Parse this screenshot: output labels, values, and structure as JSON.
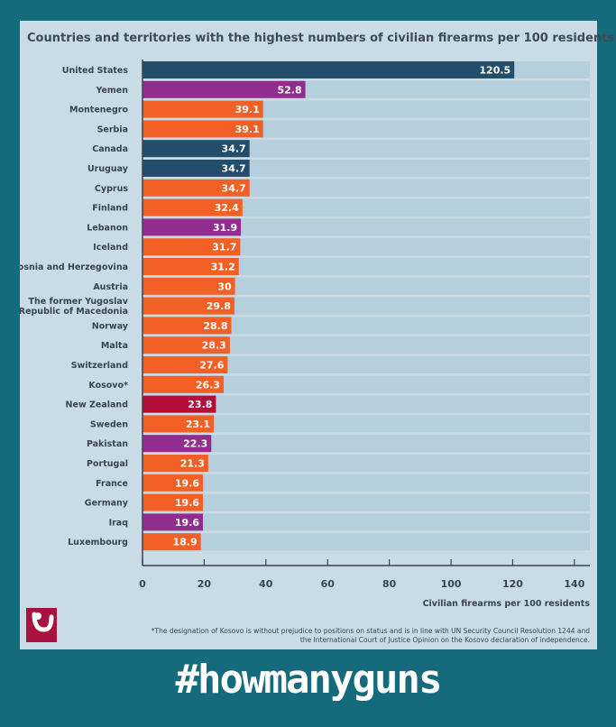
{
  "page": {
    "background_color": "#156a7b",
    "hashtag": "#howmanyguns",
    "footnote_line1": "*The designation of Kosovo is without prejudice to positions on status and is in line with UN Security Council Resolution 1244 and",
    "footnote_line2": "the International Court of Justice Opinion on the Kosovo declaration of independence."
  },
  "colors": {
    "panel": "#c9dbe4",
    "track": "#b6cfdc",
    "americas": "#224d6b",
    "middle_east_asia": "#922d8f",
    "europe": "#f26026",
    "oceania": "#b50d3a",
    "logo": "#a8123e"
  },
  "chart_data": {
    "type": "bar",
    "orientation": "horizontal",
    "title": "Countries and territories with the highest numbers of civilian firearms per 100 residents",
    "xlabel": "Civilian firearms per 100 residents",
    "ylabel": "",
    "xlim": [
      0,
      145
    ],
    "xticks": [
      0,
      20,
      40,
      60,
      80,
      100,
      120,
      140
    ],
    "bars": [
      {
        "label": "United States",
        "value": 120.5,
        "display": "120.5",
        "group": "americas"
      },
      {
        "label": "Yemen",
        "value": 52.8,
        "display": "52.8",
        "group": "middle_east_asia"
      },
      {
        "label": "Montenegro",
        "value": 39.1,
        "display": "39.1",
        "group": "europe"
      },
      {
        "label": "Serbia",
        "value": 39.1,
        "display": "39.1",
        "group": "europe"
      },
      {
        "label": "Canada",
        "value": 34.7,
        "display": "34.7",
        "group": "americas"
      },
      {
        "label": "Uruguay",
        "value": 34.7,
        "display": "34.7",
        "group": "americas"
      },
      {
        "label": "Cyprus",
        "value": 34.7,
        "display": "34.7",
        "group": "europe"
      },
      {
        "label": "Finland",
        "value": 32.4,
        "display": "32.4",
        "group": "europe"
      },
      {
        "label": "Lebanon",
        "value": 31.9,
        "display": "31.9",
        "group": "middle_east_asia"
      },
      {
        "label": "Iceland",
        "value": 31.7,
        "display": "31.7",
        "group": "europe"
      },
      {
        "label": "Bosnia and Herzegovina",
        "value": 31.2,
        "display": "31.2",
        "group": "europe"
      },
      {
        "label": "Austria",
        "value": 30,
        "display": "30",
        "group": "europe"
      },
      {
        "label": "The former Yugoslav|Republic of Macedonia",
        "value": 29.8,
        "display": "29.8",
        "group": "europe"
      },
      {
        "label": "Norway",
        "value": 28.8,
        "display": "28.8",
        "group": "europe"
      },
      {
        "label": "Malta",
        "value": 28.3,
        "display": "28.3",
        "group": "europe"
      },
      {
        "label": "Switzerland",
        "value": 27.6,
        "display": "27.6",
        "group": "europe"
      },
      {
        "label": "Kosovo*",
        "value": 26.3,
        "display": "26.3",
        "group": "europe"
      },
      {
        "label": "New Zealand",
        "value": 23.8,
        "display": "23.8",
        "group": "oceania"
      },
      {
        "label": "Sweden",
        "value": 23.1,
        "display": "23.1",
        "group": "europe"
      },
      {
        "label": "Pakistan",
        "value": 22.3,
        "display": "22.3",
        "group": "middle_east_asia"
      },
      {
        "label": "Portugal",
        "value": 21.3,
        "display": "21.3",
        "group": "europe"
      },
      {
        "label": "France",
        "value": 19.6,
        "display": "19.6",
        "group": "europe"
      },
      {
        "label": "Germany",
        "value": 19.6,
        "display": "19.6",
        "group": "europe"
      },
      {
        "label": "Iraq",
        "value": 19.6,
        "display": "19.6",
        "group": "middle_east_asia"
      },
      {
        "label": "Luxembourg",
        "value": 18.9,
        "display": "18.9",
        "group": "europe"
      }
    ]
  }
}
